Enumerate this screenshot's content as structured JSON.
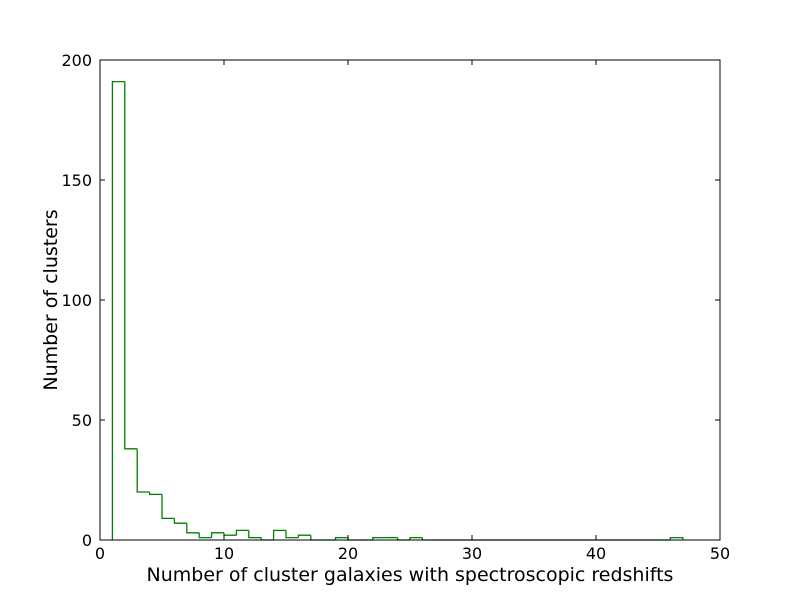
{
  "chart_data": {
    "type": "histogram",
    "title": "",
    "xlabel": "Number of cluster galaxies with spectroscopic redshifts",
    "ylabel": "Number of clusters",
    "xlim": [
      0,
      50
    ],
    "ylim": [
      0,
      200
    ],
    "xticks": [
      "0",
      "10",
      "20",
      "30",
      "40",
      "50"
    ],
    "yticks": [
      "0",
      "50",
      "100",
      "150",
      "200"
    ],
    "grid": false,
    "series_color": "#008000",
    "bin_width": 1,
    "bins_start": [
      1,
      2,
      3,
      4,
      5,
      6,
      7,
      8,
      9,
      10,
      11,
      12,
      13,
      14,
      15,
      16,
      17,
      18,
      19,
      20,
      21,
      22,
      23,
      24,
      25,
      26,
      27,
      28,
      29,
      30,
      31,
      32,
      33,
      34,
      35,
      36,
      37,
      38,
      39,
      40,
      41,
      42,
      43,
      44,
      45,
      46
    ],
    "counts": [
      191,
      38,
      20,
      19,
      9,
      7,
      3,
      1,
      3,
      2,
      4,
      1,
      0,
      4,
      1,
      2,
      0,
      0,
      1,
      0,
      0,
      1,
      1,
      0,
      1,
      0,
      0,
      0,
      0,
      0,
      0,
      0,
      0,
      0,
      0,
      0,
      0,
      0,
      0,
      0,
      0,
      0,
      0,
      0,
      0,
      1
    ]
  }
}
